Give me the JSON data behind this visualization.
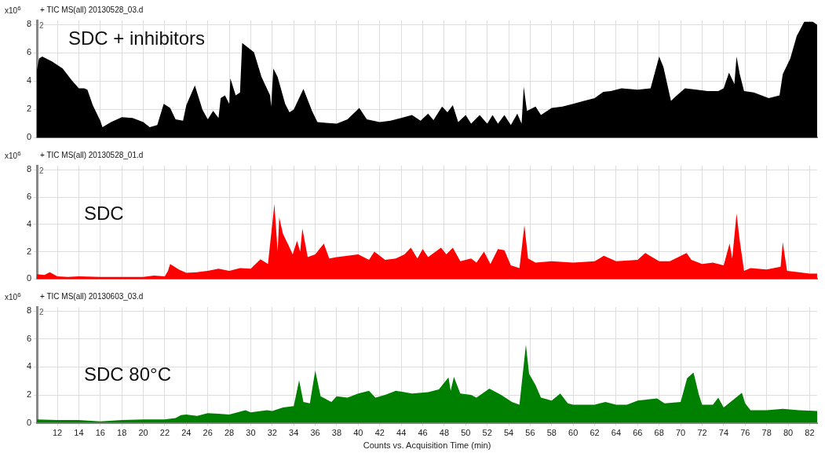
{
  "chart_data": [
    {
      "type": "area",
      "title": "+ TIC MS(all) 20130528_03.d",
      "ylabel": "x10$^{6}$",
      "annotations": [
        "SDC + inhibitors",
        "2"
      ],
      "xlim": [
        10.1,
        82.7
      ],
      "xticks": [
        12,
        14,
        16,
        18,
        20,
        22,
        24,
        26,
        28,
        30,
        32,
        34,
        36,
        38,
        40,
        42,
        44,
        46,
        48,
        50,
        52,
        54,
        56,
        58,
        60,
        62,
        64,
        66,
        68,
        70,
        72,
        74,
        76,
        78,
        80,
        82
      ],
      "ylim": [
        0,
        8.3
      ],
      "yticks": [
        0,
        2,
        4,
        6,
        8
      ],
      "grid": true,
      "tick_labels": "y",
      "series": [
        {
          "color": "#000000",
          "x": [
            10.1,
            10.3,
            10.6,
            11.5,
            12.5,
            13.3,
            14,
            14.5,
            14.8,
            15.3,
            16,
            16.2,
            17,
            18,
            19,
            20,
            20.6,
            21.3,
            21.9,
            22.5,
            23,
            23.7,
            24,
            24.8,
            25.5,
            26,
            26.5,
            27,
            27.2,
            27.6,
            28,
            28.1,
            28.6,
            29,
            29.2,
            30.3,
            31,
            31.8,
            31.9,
            32.1,
            32.5,
            33.2,
            33.6,
            34,
            34.9,
            35.7,
            36.2,
            37,
            38,
            39,
            40.1,
            40.8,
            42,
            43,
            44,
            45,
            45.8,
            46.5,
            47,
            47.8,
            48.3,
            48.8,
            49.3,
            50,
            50.5,
            51.3,
            52,
            52.5,
            53,
            53.6,
            54.2,
            54.8,
            55.2,
            55.4,
            55.7,
            56.5,
            57,
            58,
            59,
            60,
            61,
            62,
            62.8,
            63.5,
            64.5,
            66,
            67.2,
            68,
            68.4,
            69.1,
            69.5,
            70.4,
            71.5,
            72.5,
            73.5,
            74,
            74.5,
            75,
            75.2,
            75.5,
            75.9,
            76.8,
            78.2,
            79.2,
            79.5,
            80.2,
            80.8,
            81.5,
            82.3,
            82.7
          ],
          "values": [
            4.8,
            5.6,
            5.75,
            5.4,
            4.9,
            4.1,
            3.5,
            3.5,
            3.4,
            2.3,
            1.2,
            0.75,
            1.1,
            1.45,
            1.4,
            1.1,
            0.75,
            0.9,
            2.4,
            2.1,
            1.3,
            1.2,
            2.3,
            3.7,
            2,
            1.3,
            1.9,
            1.4,
            2.8,
            3,
            2.4,
            4.2,
            3,
            3.2,
            6.7,
            6.05,
            4.3,
            3,
            2.2,
            4.9,
            4.3,
            2.4,
            1.8,
            2,
            3.45,
            1.9,
            1.1,
            1.05,
            1,
            1.3,
            2.1,
            1.3,
            1.1,
            1.2,
            1.4,
            1.6,
            1.2,
            1.7,
            1.25,
            2.2,
            1.8,
            2.3,
            1.1,
            1.6,
            1,
            1.6,
            1,
            1.6,
            1,
            1.6,
            0.9,
            1.7,
            1,
            3.6,
            1.9,
            2.2,
            1.6,
            2.1,
            2.2,
            2.4,
            2.6,
            2.8,
            3.25,
            3.3,
            3.5,
            3.4,
            3.5,
            5.75,
            5,
            2.6,
            2.9,
            3.5,
            3.4,
            3.3,
            3.3,
            3.5,
            4.6,
            3.8,
            5.75,
            4.5,
            3.3,
            3.2,
            2.8,
            3,
            4.5,
            5.6,
            7.2,
            8.2,
            8.2,
            8
          ]
        }
      ]
    },
    {
      "type": "area",
      "title": "+ TIC MS(all) 20130528_01.d",
      "ylabel": "x10$^{6}$",
      "annotations": [
        "SDC",
        "2"
      ],
      "xlim": [
        10.1,
        82.7
      ],
      "xticks": [
        12,
        14,
        16,
        18,
        20,
        22,
        24,
        26,
        28,
        30,
        32,
        34,
        36,
        38,
        40,
        42,
        44,
        46,
        48,
        50,
        52,
        54,
        56,
        58,
        60,
        62,
        64,
        66,
        68,
        70,
        72,
        74,
        76,
        78,
        80,
        82
      ],
      "ylim": [
        0,
        8.3
      ],
      "yticks": [
        0,
        2,
        4,
        6,
        8
      ],
      "grid": true,
      "tick_labels": "y",
      "series": [
        {
          "color": "#ff0000",
          "x": [
            10.1,
            10.8,
            11.3,
            12,
            13,
            14,
            16,
            18,
            20,
            21,
            22,
            22.3,
            22.5,
            23.3,
            24,
            25,
            26,
            27,
            28,
            29,
            30,
            30.9,
            31.6,
            32.2,
            32.5,
            32.65,
            33,
            33.5,
            33.9,
            34.3,
            34.6,
            34.8,
            35.3,
            36,
            36.8,
            37.3,
            38,
            39,
            40,
            41,
            41.5,
            42.5,
            43.5,
            44.3,
            44.9,
            45.5,
            46,
            46.5,
            47.7,
            48.2,
            48.8,
            49.5,
            50.5,
            51,
            51.7,
            52.3,
            53,
            53.6,
            54.2,
            55,
            55.46,
            55.8,
            56.5,
            58,
            60,
            62,
            62.85,
            64,
            66,
            66.7,
            68,
            69,
            70.55,
            71,
            72,
            73,
            74,
            74.55,
            74.8,
            75.2,
            75.5,
            75.9,
            76.5,
            78,
            79.3,
            79.5,
            79.9,
            81,
            82,
            82.7
          ],
          "values": [
            0.35,
            0.3,
            0.5,
            0.2,
            0.15,
            0.2,
            0.15,
            0.15,
            0.15,
            0.25,
            0.2,
            0.6,
            1.1,
            0.7,
            0.45,
            0.5,
            0.6,
            0.75,
            0.6,
            0.8,
            0.75,
            1.45,
            1.1,
            5.5,
            2,
            4.5,
            3.3,
            2.5,
            1.8,
            2.8,
            2,
            3.7,
            1.6,
            1.8,
            2.6,
            1.5,
            1.6,
            1.7,
            1.8,
            1.4,
            2,
            1.4,
            1.5,
            1.8,
            2.3,
            1.5,
            2.2,
            1.6,
            2.3,
            1.8,
            2.3,
            1.3,
            1.5,
            1.2,
            2,
            1.1,
            2.2,
            2.1,
            1,
            0.8,
            3.95,
            1.5,
            1.2,
            1.3,
            1.2,
            1.3,
            1.7,
            1.3,
            1.4,
            1.9,
            1.3,
            1.3,
            1.9,
            1.4,
            1.1,
            1.2,
            1,
            2.6,
            1.5,
            4.8,
            2.8,
            0.6,
            0.8,
            0.7,
            0.9,
            2.7,
            0.6,
            0.5,
            0.4,
            0.4
          ]
        }
      ]
    },
    {
      "type": "area",
      "title": "+ TIC MS(all) 20130603_03.d",
      "ylabel": "x10$^{6}$",
      "xlabel": "Counts vs. Acquisition Time (min)",
      "annotations": [
        "SDC 80°C",
        "2"
      ],
      "xlim": [
        10.1,
        82.7
      ],
      "xticks": [
        12,
        14,
        16,
        18,
        20,
        22,
        24,
        26,
        28,
        30,
        32,
        34,
        36,
        38,
        40,
        42,
        44,
        46,
        48,
        50,
        52,
        54,
        56,
        58,
        60,
        62,
        64,
        66,
        68,
        70,
        72,
        74,
        76,
        78,
        80,
        82
      ],
      "ylim": [
        0,
        8.3
      ],
      "yticks": [
        0,
        2,
        4,
        6,
        8
      ],
      "grid": true,
      "series": [
        {
          "color": "#008000",
          "x": [
            10.1,
            12,
            14,
            16,
            18,
            20,
            22,
            23,
            23.5,
            24,
            25,
            26,
            27,
            28,
            29.5,
            30,
            31.5,
            32,
            33,
            34,
            34.5,
            34.9,
            35.5,
            36,
            36.5,
            37.5,
            38,
            39,
            40,
            41,
            41.6,
            42.5,
            43.5,
            44.3,
            45,
            46.5,
            47.5,
            48.4,
            48.6,
            48.9,
            49.5,
            50.5,
            51,
            52.2,
            53.3,
            54.3,
            55,
            55.6,
            55.9,
            56.5,
            57,
            58,
            58.8,
            59.5,
            60,
            62,
            63,
            64,
            65,
            66,
            67.8,
            68.5,
            70,
            70.6,
            71.2,
            71.7,
            72,
            73,
            73.5,
            74,
            75.7,
            76,
            76.5,
            78,
            79.5,
            81,
            82.7
          ],
          "values": [
            0.25,
            0.2,
            0.2,
            0.1,
            0.2,
            0.25,
            0.25,
            0.35,
            0.55,
            0.6,
            0.5,
            0.7,
            0.65,
            0.6,
            0.9,
            0.75,
            0.9,
            0.85,
            1.1,
            1.2,
            3.05,
            1.5,
            1.4,
            3.75,
            1.9,
            1.5,
            1.9,
            1.8,
            2.1,
            2.3,
            1.8,
            2,
            2.3,
            2.2,
            2.1,
            2.2,
            2.4,
            3.25,
            2.3,
            3.3,
            2.1,
            2,
            1.8,
            2.45,
            2,
            1.5,
            1.3,
            5.6,
            3.5,
            2.7,
            1.8,
            1.6,
            2.1,
            1.4,
            1.3,
            1.3,
            1.5,
            1.3,
            1.3,
            1.6,
            1.75,
            1.4,
            1.5,
            3.2,
            3.6,
            2,
            1.3,
            1.3,
            1.8,
            1.1,
            2.15,
            1.4,
            0.9,
            0.9,
            1,
            0.9,
            0.85
          ]
        }
      ]
    }
  ]
}
